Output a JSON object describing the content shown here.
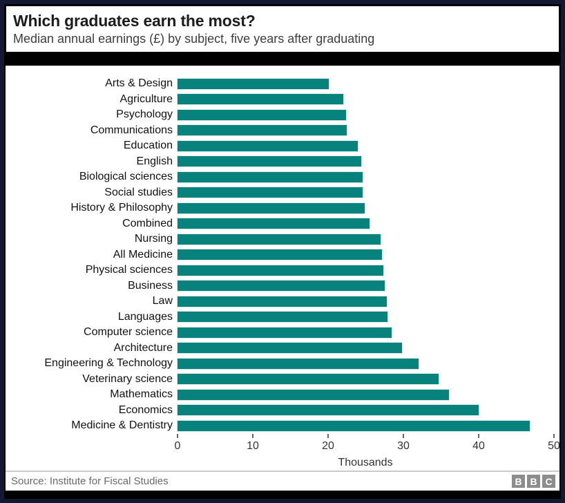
{
  "header": {
    "title": "Which graduates earn the most?",
    "subtitle": "Median annual earnings (£) by subject, five years after graduating"
  },
  "chart_data": {
    "type": "bar",
    "orientation": "horizontal",
    "title": "Which graduates earn the most?",
    "subtitle": "Median annual earnings (£) by subject, five years after graduating",
    "categories": [
      "Arts & Design",
      "Agriculture",
      "Psychology",
      "Communications",
      "Education",
      "English",
      "Biological sciences",
      "Social studies",
      "History & Philosophy",
      "Combined",
      "Nursing",
      "All Medicine",
      "Physical sciences",
      "Business",
      "Law",
      "Languages",
      "Computer science",
      "Architecture",
      "Engineering & Technology",
      "Veterinary science",
      "Mathematics",
      "Economics",
      "Medicine & Dentistry"
    ],
    "values": [
      20.1,
      22.0,
      22.4,
      22.5,
      23.9,
      24.4,
      24.6,
      24.6,
      24.9,
      25.5,
      27.0,
      27.2,
      27.3,
      27.5,
      27.8,
      27.9,
      28.4,
      29.8,
      32.0,
      34.7,
      36.1,
      40.0,
      46.8
    ],
    "units": "thousands of £ per year",
    "xlabel": "Thousands",
    "xticks": [
      0,
      10,
      20,
      30,
      40,
      50
    ],
    "xlim": [
      0,
      50
    ],
    "grid": false,
    "legend": false,
    "bar_color": "#07827D"
  },
  "footer": {
    "source": "Source: Institute for Fiscal Studies",
    "logo_letters": [
      "B",
      "B",
      "C"
    ]
  }
}
